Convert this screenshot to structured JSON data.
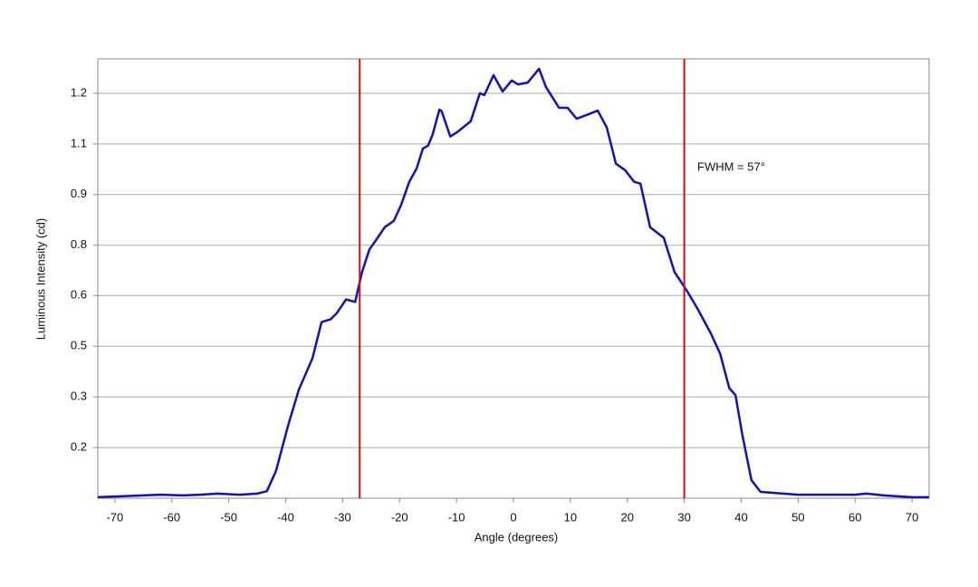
{
  "chart_data": {
    "type": "line",
    "x_label": "Angle (degrees)",
    "y_label": "Luminous Intensity (cd)",
    "annotation": "FWHM = 57°",
    "x": [
      -73,
      -65,
      -62,
      -58,
      -55,
      -52,
      -48,
      -45,
      -43.3,
      -41.7,
      -39.6,
      -37.7,
      -35.3,
      -33.7,
      -32.1,
      -31,
      -29.4,
      -27.8,
      -26.6,
      -25.3,
      -24.2,
      -22.6,
      -21,
      -19.7,
      -18.3,
      -17,
      -15.9,
      -15,
      -14.2,
      -13,
      -12.6,
      -11.1,
      -9.9,
      -7.5,
      -5.9,
      -5.1,
      -3.5,
      -1.9,
      -0.3,
      0.8,
      2.5,
      4.5,
      5.7,
      8,
      9.5,
      11.1,
      12.9,
      14.8,
      16.4,
      18,
      19.6,
      21.2,
      22.3,
      24,
      26.4,
      28.3,
      30.4,
      32.3,
      34.7,
      36.3,
      37.9,
      39,
      40.2,
      41.8,
      43.4,
      50,
      55,
      60,
      62,
      65,
      70,
      73
    ],
    "series": [
      {
        "name": "Luminous Intensity",
        "color": "#1010c8",
        "values": [
          0.06,
          0.065,
          0.067,
          0.065,
          0.067,
          0.07,
          0.067,
          0.07,
          0.077,
          0.134,
          0.261,
          0.363,
          0.452,
          0.554,
          0.562,
          0.58,
          0.618,
          0.611,
          0.695,
          0.759,
          0.784,
          0.822,
          0.84,
          0.886,
          0.95,
          0.988,
          1.044,
          1.052,
          1.083,
          1.154,
          1.149,
          1.078,
          1.09,
          1.121,
          1.2,
          1.195,
          1.251,
          1.205,
          1.236,
          1.225,
          1.23,
          1.269,
          1.218,
          1.159,
          1.159,
          1.128,
          1.139,
          1.151,
          1.103,
          1.001,
          0.983,
          0.95,
          0.945,
          0.822,
          0.792,
          0.695,
          0.644,
          0.593,
          0.521,
          0.465,
          0.368,
          0.348,
          0.236,
          0.108,
          0.075,
          0.067,
          0.067,
          0.067,
          0.07,
          0.065,
          0.06,
          0.06
        ]
      }
    ],
    "vlines": [
      -27,
      30
    ],
    "vline_color": "#d01010",
    "xlim": [
      -73,
      73
    ],
    "xticks": [
      -70,
      -60,
      -50,
      -40,
      -30,
      -20,
      -10,
      0,
      10,
      20,
      30,
      40,
      50,
      60,
      70
    ],
    "ylim": [
      0.057,
      1.297
    ],
    "yticks": [
      0.2,
      {
        "value": 0.343,
        "label": "0.3"
      },
      {
        "value": 0.486,
        "label": "0.5"
      },
      {
        "value": 0.629,
        "label": "0.6"
      },
      {
        "value": 0.771,
        "label": "0.8"
      },
      {
        "value": 0.914,
        "label": "0.9"
      },
      {
        "value": 1.057,
        "label": "1.1"
      },
      1.2
    ],
    "grid": true
  }
}
